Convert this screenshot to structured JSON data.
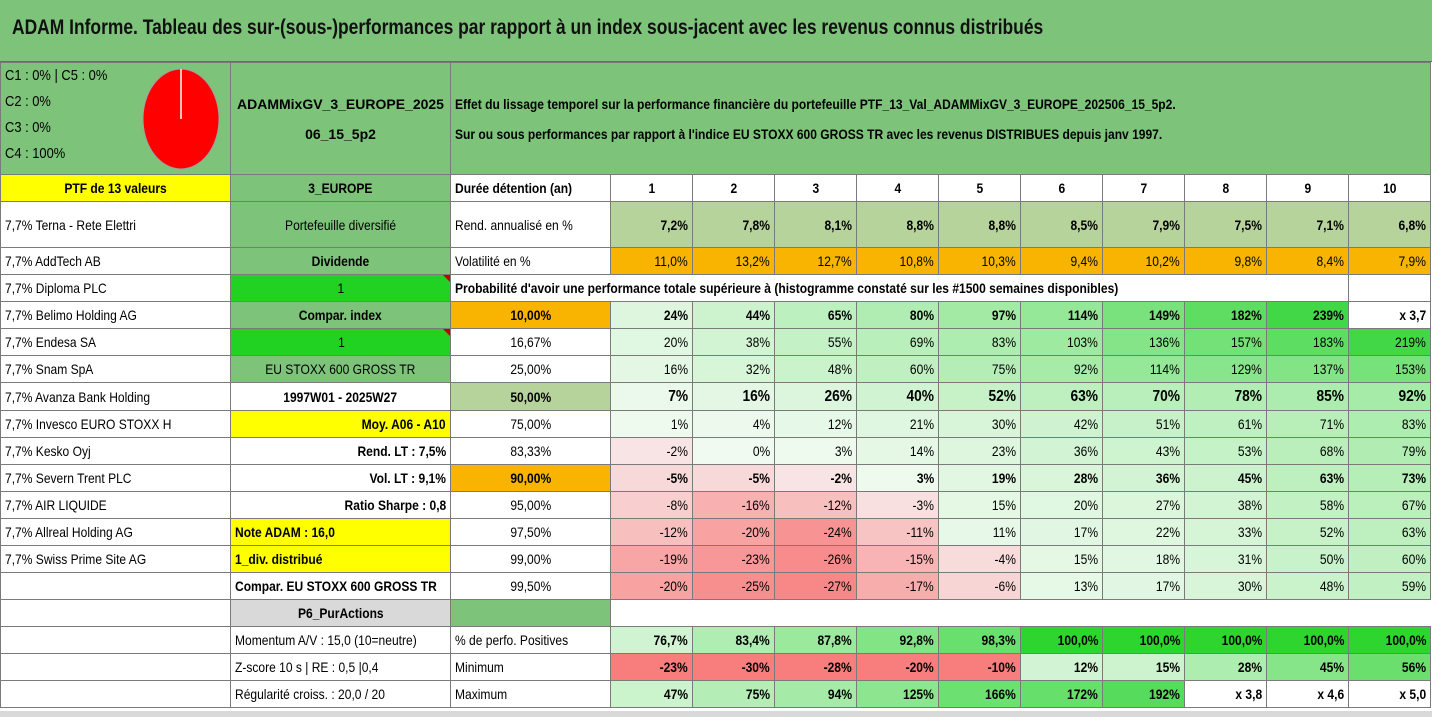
{
  "title": "ADAM Informe. Tableau des sur-(sous-)performances par rapport à un index sous-jacent avec les revenus connus distribués",
  "colors": {
    "titlebar": "#7dc47a",
    "pie": "#ff0000",
    "bright_green": "#22d222",
    "yellow": "#ffff00",
    "orange": "#f8b400"
  },
  "info": {
    "c1c5": "C1 : 0% | C5 : 0%",
    "c2": "C2 : 0%",
    "c3": "C3 : 0%",
    "c4": "C4 : 100%",
    "pie_c4_fraction": 1.0
  },
  "fund_name": "ADAMMixGV_3_EUROPE_202506_15_5p2",
  "description_1": "Effet du lissage temporel sur la performance financière du portefeuille PTF_13_Val_ADAMMixGV_3_EUROPE_202506_15_5p2.",
  "description_2": "Sur ou sous performances par rapport à l'indice EU STOXX 600 GROSS TR avec les revenus DISTRIBUES depuis janv 1997.",
  "portfolio_header": "PTF de 13 valeurs",
  "zone": "3_EUROPE",
  "holding_label": "Durée détention (an)",
  "years": [
    "1",
    "2",
    "3",
    "4",
    "5",
    "6",
    "7",
    "8",
    "9",
    "10"
  ],
  "holdings": [
    "7,7% Terna - Rete Elettri",
    "7,7% AddTech AB",
    "7,7% Diploma PLC",
    "7,7% Belimo Holding AG",
    "7,7% Endesa SA",
    "7,7% Snam SpA",
    "7,7% Avanza Bank Holding",
    "7,7% Invesco EURO STOXX H",
    "7,7% Kesko Oyj",
    "7,7% Severn Trent PLC",
    "7,7% AIR LIQUIDE",
    "7,7% Allreal Holding AG",
    "7,7% Swiss Prime Site AG"
  ],
  "side": {
    "diversified": "Portefeuille diversifié",
    "dividend": "Dividende",
    "dividend_val": "1",
    "compar_index": "Compar. index",
    "compar_index_val": "1",
    "index_name": "EU STOXX 600 GROSS TR",
    "period": "1997W01 - 2025W27",
    "moy": "Moy. A06 - A10",
    "rend_lt": "Rend. LT : 7,5%",
    "vol_lt": "Vol. LT : 9,1%",
    "sharpe": "Ratio Sharpe : 0,8",
    "note": "Note ADAM : 16,0",
    "div": "1_div. distribué",
    "compar_full": "Compar. EU STOXX 600 GROSS TR",
    "p6": "P6_PurActions",
    "momentum": "Momentum A/V : 15,0 (10=neutre)",
    "zscore": "Z-score 10 s | RE : 0,5 |0,4",
    "regularite": "Régularité croiss. : 20,0 / 20"
  },
  "rend_label": "Rend. annualisé en %",
  "rend": [
    "7,2%",
    "7,8%",
    "8,1%",
    "8,8%",
    "8,8%",
    "8,5%",
    "7,9%",
    "7,5%",
    "7,1%",
    "6,8%"
  ],
  "vol_label": "Volatilité en %",
  "vol": [
    "11,0%",
    "13,2%",
    "12,7%",
    "10,8%",
    "10,3%",
    "9,4%",
    "10,2%",
    "9,8%",
    "8,4%",
    "7,9%"
  ],
  "prob_header": "Probabilité d'avoir une performance totale supérieure à (histogramme constaté sur les #1500 semaines disponibles)",
  "prob_rows": [
    {
      "p": "10,00%",
      "v": [
        "24%",
        "44%",
        "65%",
        "80%",
        "97%",
        "114%",
        "149%",
        "182%",
        "239%",
        "x 3,7"
      ]
    },
    {
      "p": "16,67%",
      "v": [
        "20%",
        "38%",
        "55%",
        "69%",
        "83%",
        "103%",
        "136%",
        "157%",
        "183%",
        "219%"
      ]
    },
    {
      "p": "25,00%",
      "v": [
        "16%",
        "32%",
        "48%",
        "60%",
        "75%",
        "92%",
        "114%",
        "129%",
        "137%",
        "153%"
      ]
    },
    {
      "p": "50,00%",
      "v": [
        "7%",
        "16%",
        "26%",
        "40%",
        "52%",
        "63%",
        "70%",
        "78%",
        "85%",
        "92%"
      ]
    },
    {
      "p": "75,00%",
      "v": [
        "1%",
        "4%",
        "12%",
        "21%",
        "30%",
        "42%",
        "51%",
        "61%",
        "71%",
        "83%"
      ]
    },
    {
      "p": "83,33%",
      "v": [
        "-2%",
        "0%",
        "3%",
        "14%",
        "23%",
        "36%",
        "43%",
        "53%",
        "68%",
        "79%"
      ]
    },
    {
      "p": "90,00%",
      "v": [
        "-5%",
        "-5%",
        "-2%",
        "3%",
        "19%",
        "28%",
        "36%",
        "45%",
        "63%",
        "73%"
      ]
    },
    {
      "p": "95,00%",
      "v": [
        "-8%",
        "-16%",
        "-12%",
        "-3%",
        "15%",
        "20%",
        "27%",
        "38%",
        "58%",
        "67%"
      ]
    },
    {
      "p": "97,50%",
      "v": [
        "-12%",
        "-20%",
        "-24%",
        "-11%",
        "11%",
        "17%",
        "22%",
        "33%",
        "52%",
        "63%"
      ]
    },
    {
      "p": "99,00%",
      "v": [
        "-19%",
        "-23%",
        "-26%",
        "-15%",
        "-4%",
        "15%",
        "18%",
        "31%",
        "50%",
        "60%"
      ]
    },
    {
      "p": "99,50%",
      "v": [
        "-20%",
        "-25%",
        "-27%",
        "-17%",
        "-6%",
        "13%",
        "17%",
        "30%",
        "48%",
        "59%"
      ]
    }
  ],
  "pos_label": "% de perfo. Positives",
  "pos": [
    "76,7%",
    "83,4%",
    "87,8%",
    "92,8%",
    "98,3%",
    "100,0%",
    "100,0%",
    "100,0%",
    "100,0%",
    "100,0%"
  ],
  "min_label": "Minimum",
  "min": [
    "-23%",
    "-30%",
    "-28%",
    "-20%",
    "-10%",
    "12%",
    "15%",
    "28%",
    "45%",
    "56%"
  ],
  "max_label": "Maximum",
  "max": [
    "47%",
    "75%",
    "94%",
    "125%",
    "166%",
    "172%",
    "192%",
    "x 3,8",
    "x 4,6",
    "x 5,0"
  ]
}
